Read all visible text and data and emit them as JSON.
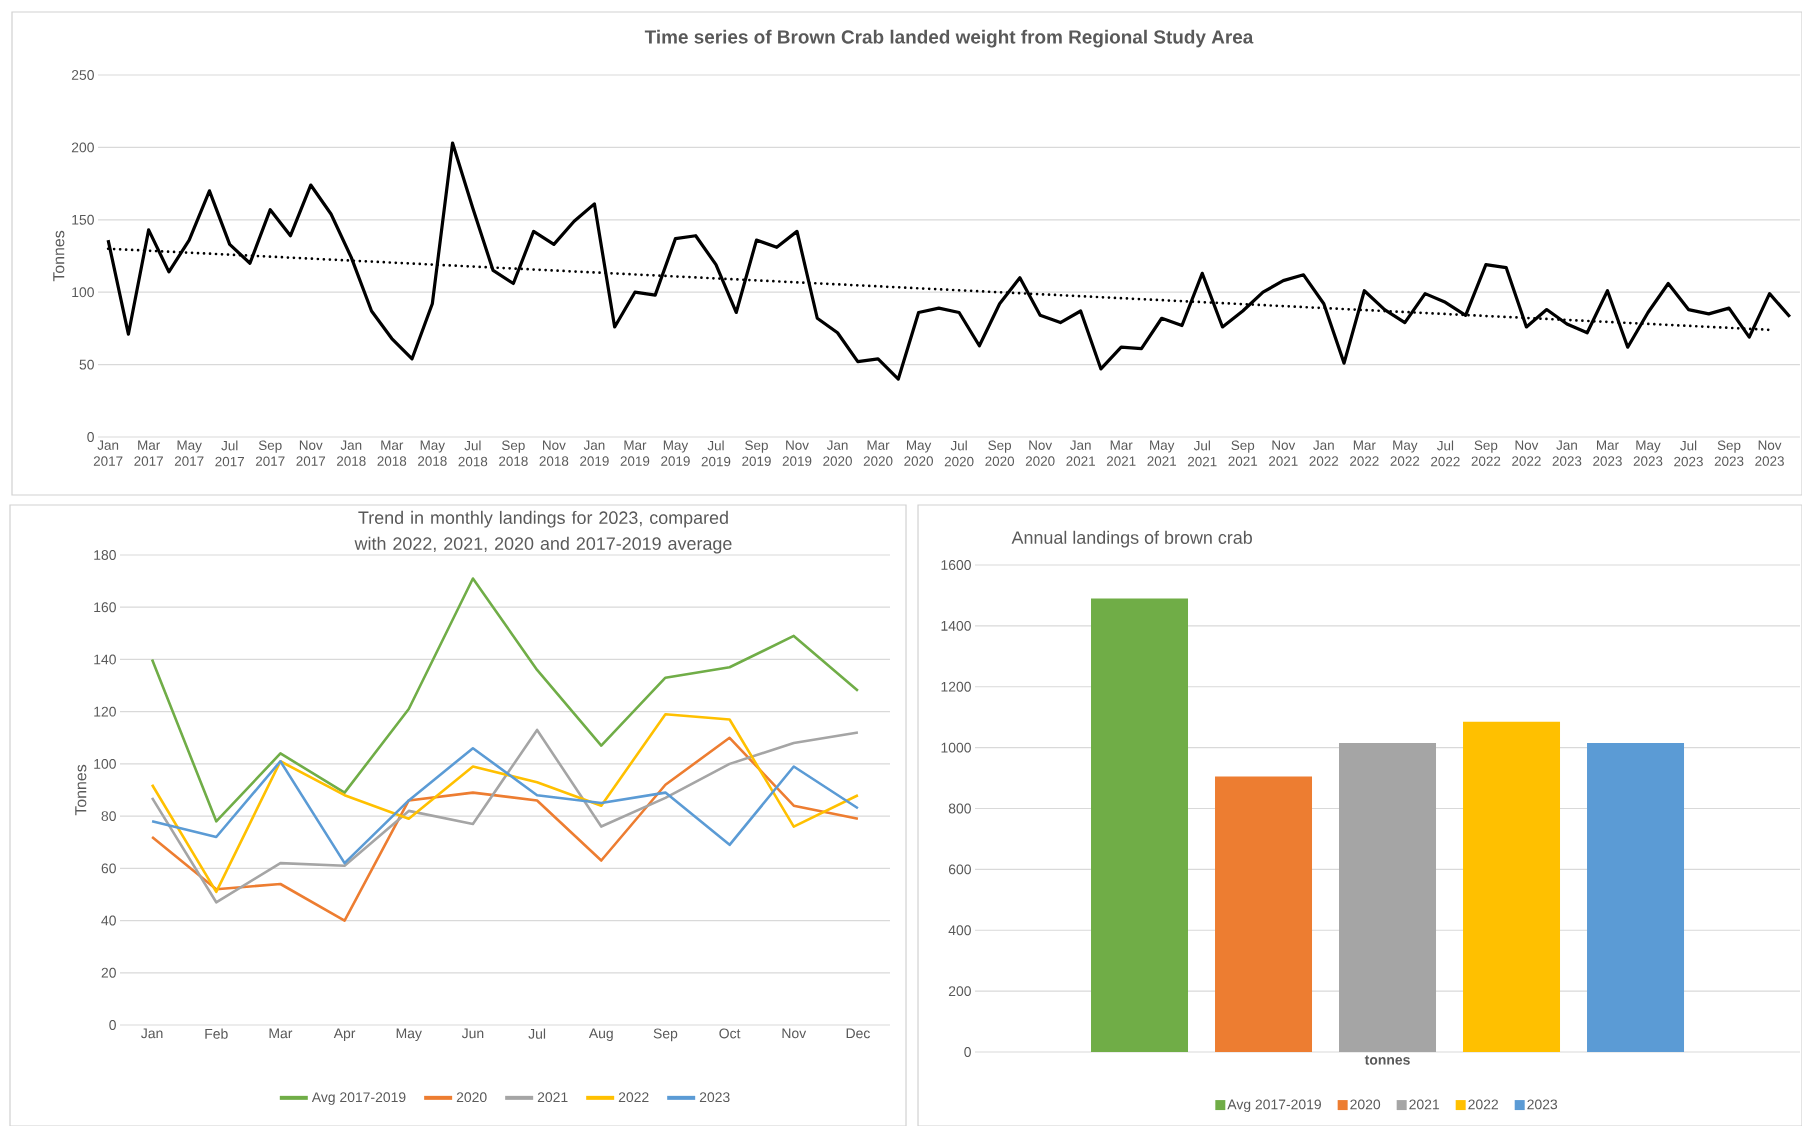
{
  "chart_data": [
    {
      "type": "line",
      "title": "Time series of Brown Crab landed weight from Regional Study Area",
      "ylabel": "Tonnes",
      "categories": [
        "Jan 2017",
        null,
        "Mar 2017",
        null,
        "May 2017",
        null,
        "Jul 2017",
        null,
        "Sep 2017",
        null,
        "Nov 2017",
        null,
        "Jan 2018",
        null,
        "Mar 2018",
        null,
        "May 2018",
        null,
        "Jul 2018",
        null,
        "Sep 2018",
        null,
        "Nov 2018",
        null,
        "Jan 2019",
        null,
        "Mar 2019",
        null,
        "May 2019",
        null,
        "Jul 2019",
        null,
        "Sep 2019",
        null,
        "Nov 2019",
        null,
        "Jan 2020",
        null,
        "Mar 2020",
        null,
        "May 2020",
        null,
        "Jul 2020",
        null,
        "Sep 2020",
        null,
        "Nov 2020",
        null,
        "Jan 2021",
        null,
        "Mar 2021",
        null,
        "May 2021",
        null,
        "Jul 2021",
        null,
        "Sep 2021",
        null,
        "Nov 2021",
        null,
        "Jan 2022",
        null,
        "Mar 2022",
        null,
        "May 2022",
        null,
        "Jul 2022",
        null,
        "Sep 2022",
        null,
        "Nov 2022",
        null,
        "Jan 2023",
        null,
        "Mar 2023",
        null,
        "May 2023",
        null,
        "Jul 2023",
        null,
        "Sep 2023",
        null,
        "Nov 2023",
        null
      ],
      "series": [
        {
          "color": "#000000",
          "values": [
            136,
            71,
            143,
            114,
            136,
            170,
            133,
            120,
            157,
            139,
            174,
            154,
            124,
            87,
            68,
            54,
            92,
            203,
            158,
            115,
            106,
            142,
            133,
            149,
            161,
            76,
            100,
            98,
            137,
            139,
            119,
            86,
            136,
            131,
            142,
            82,
            72,
            52,
            54,
            40,
            86,
            89,
            86,
            63,
            92,
            110,
            84,
            79,
            87,
            47,
            62,
            61,
            82,
            77,
            113,
            76,
            87,
            100,
            108,
            112,
            92,
            51,
            101,
            88,
            79,
            99,
            93,
            84,
            119,
            117,
            76,
            88,
            78,
            72,
            101,
            62,
            86,
            106,
            88,
            85,
            89,
            69,
            99,
            83
          ]
        },
        {
          "type": "line",
          "color": "#000000",
          "line_style": "dotted",
          "x": [
            "Jan 2017",
            "Nov 2023"
          ],
          "values": [
            130,
            74
          ]
        }
      ],
      "ylim": [
        0,
        250
      ],
      "yticks": [
        0,
        50,
        100,
        150,
        200,
        250
      ],
      "grid": "y"
    },
    {
      "type": "line",
      "title": "Trend in monthly landings for 2023, compared with 2022, 2021, 2020 and 2017-2019 average",
      "ylabel": "Tonnes",
      "categories": [
        "Jan",
        "Feb",
        "Mar",
        "Apr",
        "May",
        "Jun",
        "Jul",
        "Aug",
        "Sep",
        "Oct",
        "Nov",
        "Dec"
      ],
      "series": [
        {
          "name": "Avg 2017-2019",
          "color": "#70ad47",
          "values": [
            140,
            78,
            104,
            89,
            121,
            171,
            136,
            107,
            133,
            137,
            149,
            128
          ]
        },
        {
          "name": "2020",
          "color": "#ed7d31",
          "values": [
            72,
            52,
            54,
            40,
            86,
            89,
            86,
            63,
            92,
            110,
            84,
            79
          ]
        },
        {
          "name": "2021",
          "color": "#a5a5a5",
          "values": [
            87,
            47,
            62,
            61,
            82,
            77,
            113,
            76,
            87,
            100,
            108,
            112
          ]
        },
        {
          "name": "2022",
          "color": "#ffc000",
          "values": [
            92,
            51,
            101,
            88,
            79,
            99,
            93,
            84,
            119,
            117,
            76,
            88
          ]
        },
        {
          "name": "2023",
          "color": "#5b9bd5",
          "values": [
            78,
            72,
            101,
            62,
            86,
            106,
            88,
            85,
            89,
            69,
            99,
            83
          ]
        }
      ],
      "ylim": [
        0,
        180
      ],
      "yticks": [
        0,
        20,
        40,
        60,
        80,
        100,
        120,
        140,
        160,
        180
      ],
      "grid": "y",
      "legend": "bottom"
    },
    {
      "type": "bar",
      "title": "Annual landings of brown crab",
      "categories": [
        "tonnes"
      ],
      "series": [
        {
          "name": "Avg 2017-2019",
          "color": "#70ad47",
          "values": [
            1490
          ]
        },
        {
          "name": "2020",
          "color": "#ed7d31",
          "values": [
            905
          ]
        },
        {
          "name": "2021",
          "color": "#a5a5a5",
          "values": [
            1015
          ]
        },
        {
          "name": "2022",
          "color": "#ffc000",
          "values": [
            1085
          ]
        },
        {
          "name": "2023",
          "color": "#5b9bd5",
          "values": [
            1015
          ]
        }
      ],
      "ylim": [
        0,
        1600
      ],
      "yticks": [
        0,
        200,
        400,
        600,
        800,
        1000,
        1200,
        1400,
        1600
      ],
      "grid": "y",
      "legend": "bottom"
    }
  ]
}
